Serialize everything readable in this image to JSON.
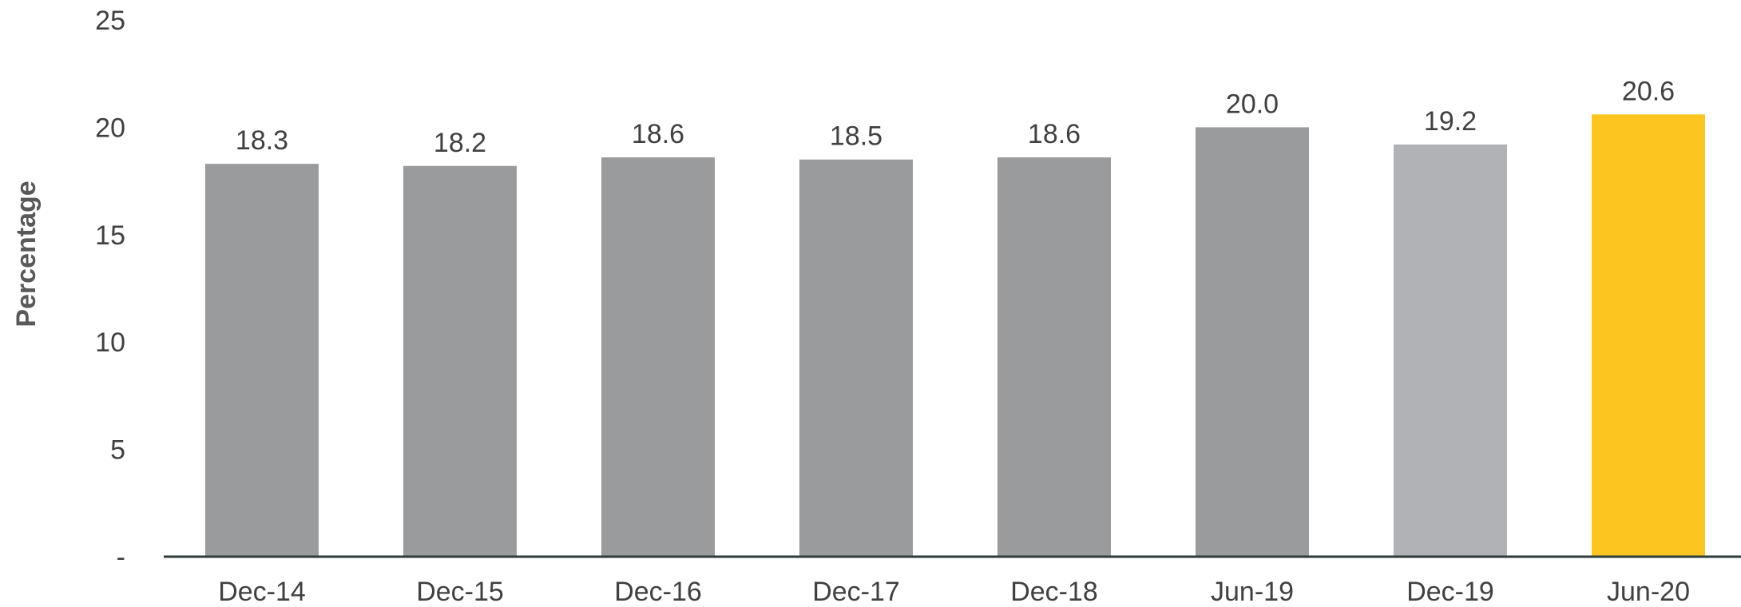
{
  "chart_data": {
    "type": "bar",
    "title": "",
    "xlabel": "",
    "ylabel": "Percentage",
    "categories": [
      "Dec-14",
      "Dec-15",
      "Dec-16",
      "Dec-17",
      "Dec-18",
      "Jun-19",
      "Dec-19",
      "Jun-20"
    ],
    "values": [
      18.3,
      18.2,
      18.6,
      18.5,
      18.6,
      20.0,
      19.2,
      20.6
    ],
    "data_labels": [
      "18.3",
      "18.2",
      "18.6",
      "18.5",
      "18.6",
      "20.0",
      "19.2",
      "20.6"
    ],
    "bar_colors": [
      "#9a9b9d",
      "#9a9b9d",
      "#9a9b9d",
      "#9a9b9d",
      "#9a9b9d",
      "#9a9b9d",
      "#b1b2b6",
      "#fdc51f"
    ],
    "ylim": [
      0,
      25
    ],
    "yticks": [
      0,
      5,
      10,
      15,
      20,
      25
    ],
    "ytick_labels": [
      "-",
      "5",
      "10",
      "15",
      "20",
      "25"
    ],
    "grid": false,
    "legend": "none",
    "axis_color": "#2f3a3a"
  }
}
